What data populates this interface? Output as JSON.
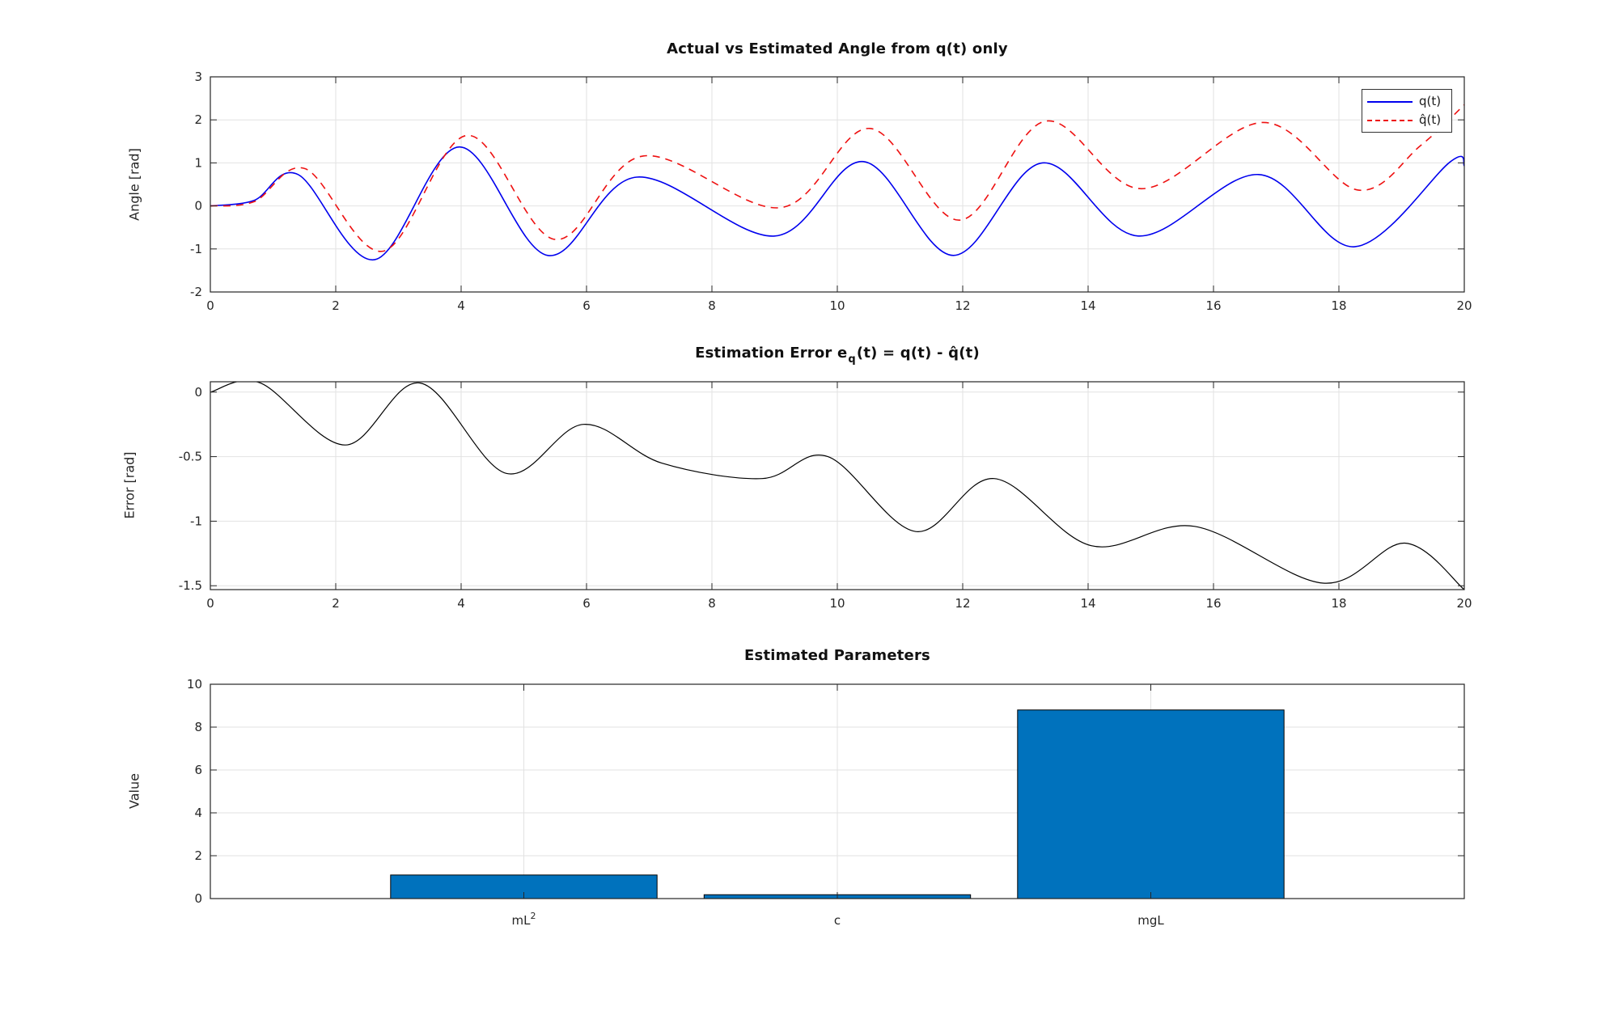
{
  "figure": {
    "background": "#ffffff",
    "text_color": "#262626",
    "grid_color": "#e2e2e2",
    "axis_color": "#262626"
  },
  "chart_data": [
    {
      "type": "line",
      "name": "angle-plot",
      "title": "Actual vs Estimated Angle from q(t) only",
      "ylabel": "Angle [rad]",
      "xlim": [
        0,
        20
      ],
      "ylim": [
        -2,
        3
      ],
      "xticks": [
        0,
        2,
        4,
        6,
        8,
        10,
        12,
        14,
        16,
        18,
        20
      ],
      "yticks": [
        -2,
        -1,
        0,
        1,
        2,
        3
      ],
      "grid": true,
      "legend_position": "northeast",
      "series": [
        {
          "name": "q(t)",
          "color": "#0000EE",
          "style": "solid",
          "points": [
            [
              0,
              0
            ],
            [
              0.7,
              0.13
            ],
            [
              1.4,
              0.73
            ],
            [
              2.62,
              -1.25
            ],
            [
              3.97,
              1.37
            ],
            [
              5.38,
              -1.15
            ],
            [
              6.8,
              0.67
            ],
            [
              9.0,
              -0.7
            ],
            [
              10.42,
              1.03
            ],
            [
              11.85,
              -1.15
            ],
            [
              13.27,
              1.0
            ],
            [
              14.8,
              -0.7
            ],
            [
              16.72,
              0.73
            ],
            [
              18.25,
              -0.95
            ],
            [
              19.78,
              1.03
            ],
            [
              20,
              0.93
            ]
          ]
        },
        {
          "name": "q̂(t)",
          "color": "#EE1111",
          "style": "dashed",
          "points": [
            [
              0,
              0
            ],
            [
              0.7,
              0.1
            ],
            [
              1.52,
              0.86
            ],
            [
              2.76,
              -1.05
            ],
            [
              4.1,
              1.64
            ],
            [
              5.5,
              -0.78
            ],
            [
              6.9,
              1.16
            ],
            [
              9.1,
              -0.04
            ],
            [
              10.52,
              1.8
            ],
            [
              11.95,
              -0.33
            ],
            [
              13.32,
              1.97
            ],
            [
              14.85,
              0.4
            ],
            [
              16.8,
              1.94
            ],
            [
              18.3,
              0.37
            ],
            [
              19.3,
              1.4
            ],
            [
              20,
              2.35
            ]
          ]
        }
      ]
    },
    {
      "type": "line",
      "name": "error-plot",
      "title": "Estimation Error e_q(t) = q(t) - q̂(t)",
      "title_parts": {
        "pre": "Estimation Error e",
        "sub": "q",
        "post": "(t) = q(t) - q̂(t)"
      },
      "ylabel": "Error [rad]",
      "xlim": [
        0,
        20
      ],
      "ylim": [
        -1.53,
        0.08
      ],
      "xticks": [
        0,
        2,
        4,
        6,
        8,
        10,
        12,
        14,
        16,
        18,
        20
      ],
      "yticks": [
        0,
        -0.5,
        -1,
        -1.5
      ],
      "grid": true,
      "series": [
        {
          "name": "e_q(t)",
          "color": "#000000",
          "style": "solid",
          "points": [
            [
              0,
              0
            ],
            [
              0.8,
              0.07
            ],
            [
              2.15,
              -0.41
            ],
            [
              3.35,
              0.07
            ],
            [
              4.72,
              -0.63
            ],
            [
              5.95,
              -0.25
            ],
            [
              7.2,
              -0.55
            ],
            [
              8.8,
              -0.67
            ],
            [
              9.85,
              -0.5
            ],
            [
              11.25,
              -1.08
            ],
            [
              12.5,
              -0.67
            ],
            [
              14.05,
              -1.19
            ],
            [
              15.7,
              -1.04
            ],
            [
              17.75,
              -1.48
            ],
            [
              19.05,
              -1.17
            ],
            [
              20,
              -1.53
            ]
          ]
        }
      ]
    },
    {
      "type": "bar",
      "name": "parameters-plot",
      "title": "Estimated Parameters",
      "ylabel": "Value",
      "xlim": [
        0,
        4
      ],
      "ylim": [
        0,
        10
      ],
      "yticks": [
        0,
        2,
        4,
        6,
        8,
        10
      ],
      "grid": true,
      "categories": [
        {
          "text": "mL",
          "sup": "2"
        },
        {
          "text": "c",
          "sup": ""
        },
        {
          "text": "mgL",
          "sup": ""
        }
      ],
      "positions": [
        1,
        2,
        3
      ],
      "values": [
        1.1,
        0.18,
        8.8
      ],
      "bar_width": 0.85,
      "bar_color": "#0072BD",
      "bar_edge": "#000000"
    }
  ]
}
